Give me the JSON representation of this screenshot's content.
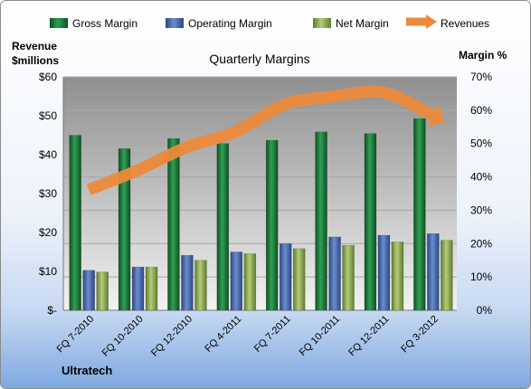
{
  "chart_data": {
    "type": "bar",
    "title": "Quarterly Margins",
    "left_axis_label_line1": "Revenue",
    "left_axis_label_line2": "$millions",
    "right_axis_label": "Margin %",
    "company": "Ultratech",
    "categories": [
      "FQ 7-2010",
      "FQ 10-2010",
      "FQ 12-2010",
      "FQ 4-2011",
      "FQ 7-2011",
      "FQ 10-2011",
      "FQ 12-2011",
      "FQ 3-2012"
    ],
    "left_ticks": [
      "$-",
      "$10",
      "$20",
      "$30",
      "$40",
      "$50",
      "$60"
    ],
    "left_ylim": [
      0,
      60
    ],
    "right_ticks": [
      "0%",
      "10%",
      "20%",
      "30%",
      "40%",
      "50%",
      "60%",
      "70%"
    ],
    "right_ylim": [
      0,
      70
    ],
    "series": [
      {
        "name": "Gross Margin",
        "axis": "right",
        "color": "#1f7a3a",
        "values": [
          52.5,
          48.5,
          51.5,
          50,
          51,
          53.5,
          53,
          57.5
        ]
      },
      {
        "name": "Operating Margin",
        "axis": "right",
        "color": "#4a6aa8",
        "values": [
          12,
          13,
          16.5,
          17.5,
          20,
          22,
          22.5,
          23
        ]
      },
      {
        "name": "Net Margin",
        "axis": "right",
        "color": "#8fae52",
        "values": [
          11.5,
          13,
          15,
          17,
          18.5,
          19.5,
          20.5,
          21
        ]
      },
      {
        "name": "Revenues",
        "axis": "left",
        "type": "line",
        "color": "#ec8a3c",
        "values": [
          31,
          36,
          42,
          46,
          53,
          55,
          56,
          50
        ]
      }
    ],
    "legend_position": "top",
    "grid": true
  }
}
